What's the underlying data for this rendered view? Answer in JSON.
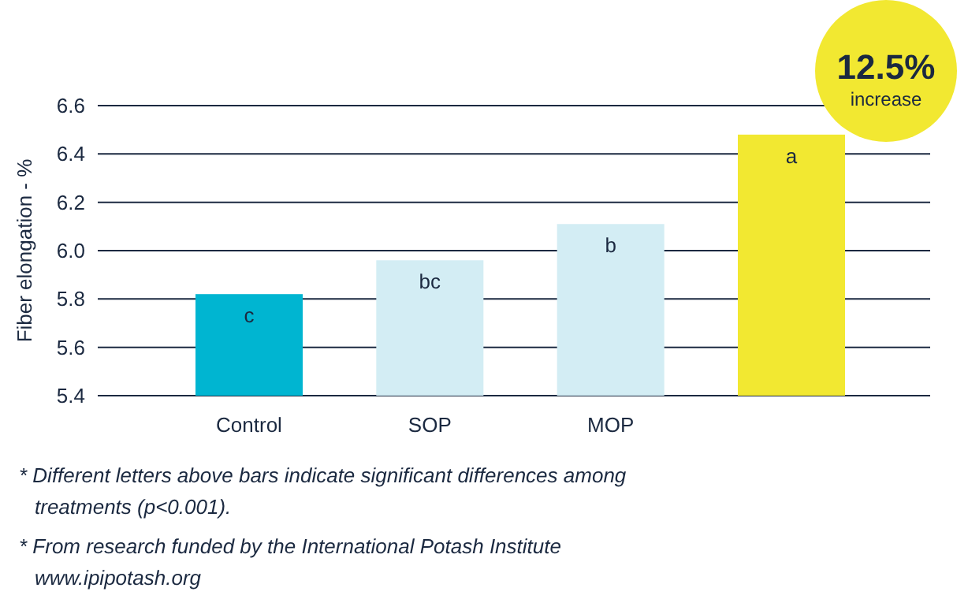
{
  "chart_data": {
    "type": "bar",
    "ylabel": "Fiber elongation - %",
    "categories": [
      "Control",
      "SOP",
      "MOP",
      null
    ],
    "values": [
      5.82,
      5.96,
      6.11,
      6.48
    ],
    "colors": [
      "#00b5d1",
      "#d3edf4",
      "#d3edf4",
      "#f2e831"
    ],
    "value_labels": [
      "c",
      "bc",
      "b",
      "a"
    ],
    "ylim": [
      5.4,
      6.6
    ],
    "yticks": [
      {
        "value": 5.4,
        "label": "5.4"
      },
      {
        "value": 5.6,
        "label": "5.6"
      },
      {
        "value": 5.8,
        "label": "5.8"
      },
      {
        "value": 6.0,
        "label": "6.0"
      },
      {
        "value": 6.2,
        "label": "6.2"
      },
      {
        "value": 6.4,
        "label": "6.4"
      },
      {
        "value": 6.6,
        "label": "6.6"
      }
    ],
    "grid": "y",
    "annotations": [
      "12.5%",
      "increase",
      "* Different letters above bars indicate significant differences among treatments (p<0.001).",
      "* From research funded by the International Potash Institute www.ipipotash.org"
    ]
  }
}
